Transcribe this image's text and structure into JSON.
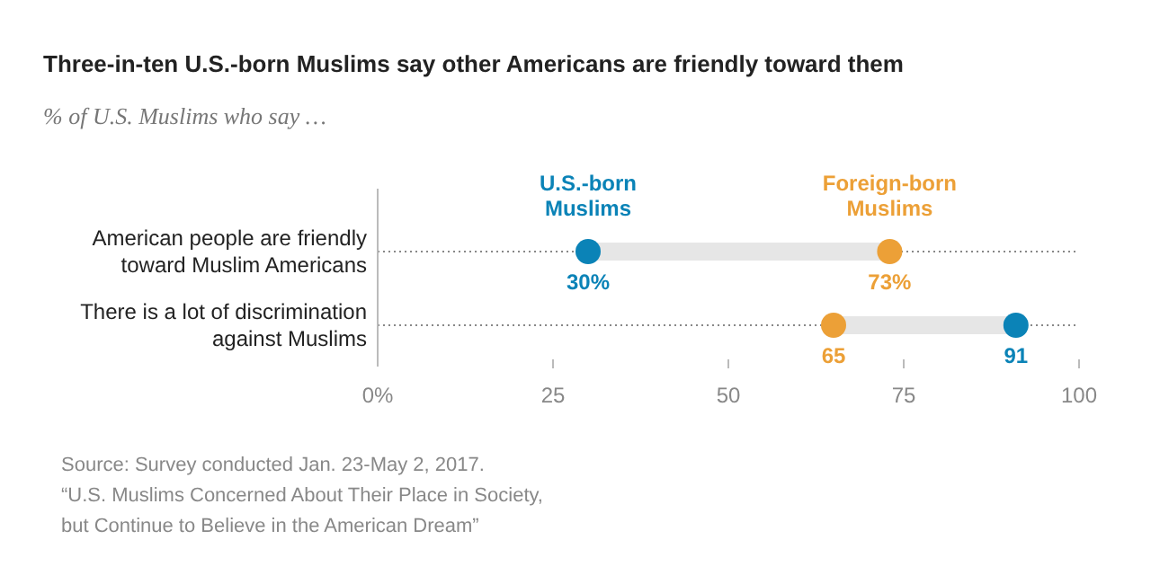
{
  "chart_data": {
    "type": "scatter",
    "orientation": "horizontal",
    "title": "Three-in-ten U.S.-born Muslims say other Americans are friendly toward them",
    "subtitle": "% of U.S. Muslims who say …",
    "categories": [
      "American people are friendly toward Muslim Americans",
      "There is a lot of discrimination against Muslims"
    ],
    "series": [
      {
        "name": "U.S.-born Muslims",
        "color": "#0b83b7",
        "values": [
          30,
          91
        ],
        "value_labels": [
          "30%",
          "91"
        ]
      },
      {
        "name": "Foreign-born Muslims",
        "color": "#eca037",
        "values": [
          73,
          65
        ],
        "value_labels": [
          "73%",
          "65"
        ]
      }
    ],
    "xlim": [
      0,
      100
    ],
    "xticks": [
      {
        "value": 0,
        "label": "0%"
      },
      25,
      50,
      75,
      100
    ],
    "grid": "y",
    "legend": "top",
    "marker": "circle",
    "annotations": [
      "Source: Survey conducted Jan. 23-May 2, 2017.",
      "“U.S. Muslims Concerned About Their Place in Society,",
      "but Continue to Believe in the American Dream”"
    ]
  }
}
